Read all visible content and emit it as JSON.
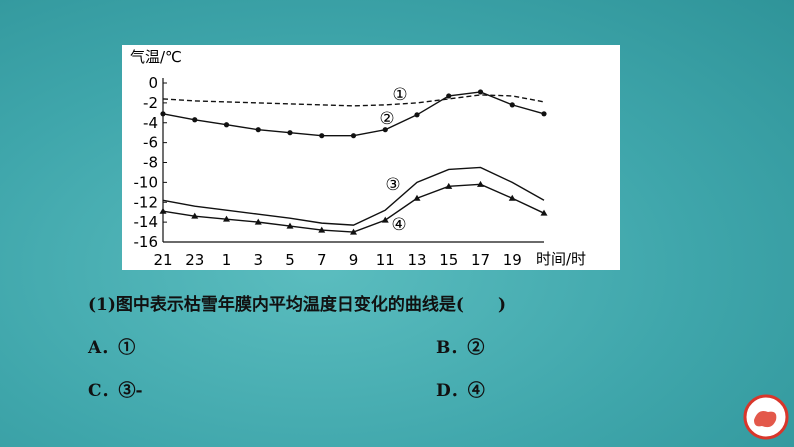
{
  "chart_data": {
    "type": "line",
    "y_label": "气温/℃",
    "x_label": "时间/时",
    "categories": [
      "21",
      "23",
      "1",
      "3",
      "5",
      "7",
      "9",
      "11",
      "13",
      "15",
      "17",
      "19",
      null
    ],
    "ylim": [
      -16,
      0
    ],
    "yticks": [
      0,
      -2,
      -4,
      -6,
      -8,
      -10,
      -12,
      -14,
      -16
    ],
    "series": [
      {
        "name": "①",
        "color": "#111111",
        "dash": true,
        "marker": "none",
        "values": [
          -1.6,
          -1.8,
          -1.9,
          -2.0,
          -2.1,
          -2.2,
          -2.3,
          -2.2,
          -2.0,
          -1.6,
          -1.2,
          -1.3,
          -1.9
        ]
      },
      {
        "name": "②",
        "color": "#111111",
        "dash": false,
        "marker": "circle",
        "values": [
          -3.1,
          -3.7,
          -4.2,
          -4.7,
          -5.0,
          -5.3,
          -5.3,
          -4.7,
          -3.2,
          -1.3,
          -0.9,
          -2.2,
          -3.1
        ]
      },
      {
        "name": "③",
        "color": "#111111",
        "dash": false,
        "marker": "none",
        "values": [
          -11.8,
          -12.4,
          -12.8,
          -13.2,
          -13.6,
          -14.1,
          -14.3,
          -12.8,
          -10.0,
          -8.7,
          -8.5,
          -10.0,
          -11.8
        ]
      },
      {
        "name": "④",
        "color": "#111111",
        "dash": false,
        "marker": "triangle",
        "values": [
          -12.9,
          -13.4,
          -13.7,
          -14.0,
          -14.4,
          -14.8,
          -15.0,
          -13.8,
          -11.6,
          -10.4,
          -10.2,
          -11.6,
          -13.1
        ]
      }
    ]
  },
  "question": {
    "stem": "(1)图中表示枯雪年膜内平均温度日变化的曲线是(　　)",
    "options": [
      "A．①",
      "B．②",
      "C．③-",
      "D．④"
    ]
  }
}
